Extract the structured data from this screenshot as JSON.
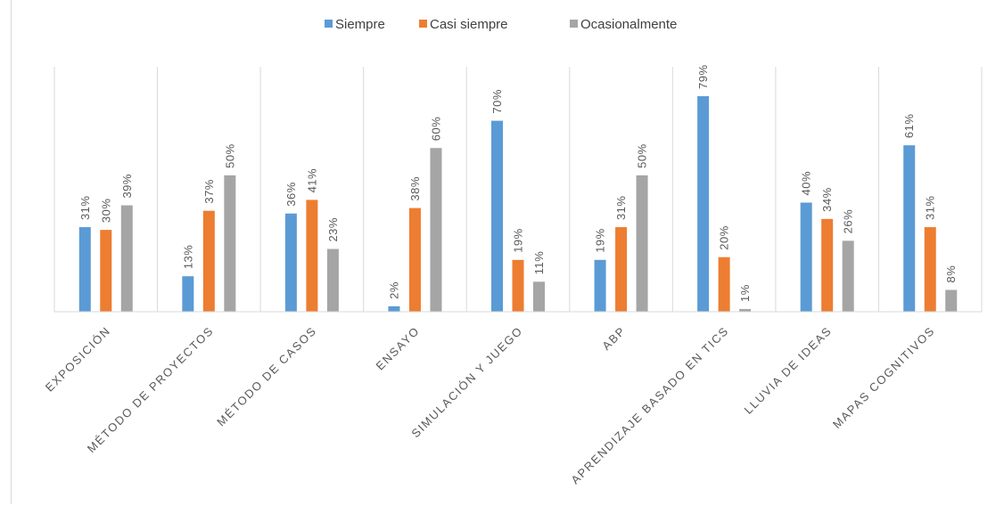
{
  "chart_data": {
    "type": "bar",
    "title": "",
    "xlabel": "",
    "ylabel": "",
    "ylim": [
      0,
      80
    ],
    "grid": false,
    "legend_position": "top-center",
    "categories": [
      "EXPOSICIÓN",
      "MÉTODO DE PROYECTOS",
      "MÉTODO DE CASOS",
      "ENSAYO",
      "SIMULACIÓN Y JUEGO",
      "ABP",
      "APRENDIZAJE BASADO EN TICS",
      "LLUVIA DE IDEAS",
      "MAPAS COGNITIVOS"
    ],
    "series": [
      {
        "name": "Siempre",
        "color": "#5b9bd5",
        "values": [
          31,
          13,
          36,
          2,
          70,
          19,
          79,
          40,
          61
        ],
        "labels": [
          "31%",
          "13%",
          "36%",
          "2%",
          "70%",
          "19%",
          "79%",
          "40%",
          "61%"
        ]
      },
      {
        "name": "Casi siempre",
        "color": "#ed7d31",
        "values": [
          30,
          37,
          41,
          38,
          19,
          31,
          20,
          34,
          31
        ],
        "labels": [
          "30%",
          "37%",
          "41%",
          "38%",
          "19%",
          "31%",
          "20%",
          "34%",
          "31%"
        ]
      },
      {
        "name": "Ocasionalmente",
        "color": "#a5a5a5",
        "values": [
          39,
          50,
          23,
          60,
          11,
          50,
          1,
          26,
          8
        ],
        "labels": [
          "39%",
          "50%",
          "23%",
          "60%",
          "11%",
          "50%",
          "1%",
          "26%",
          "8%"
        ]
      }
    ]
  }
}
